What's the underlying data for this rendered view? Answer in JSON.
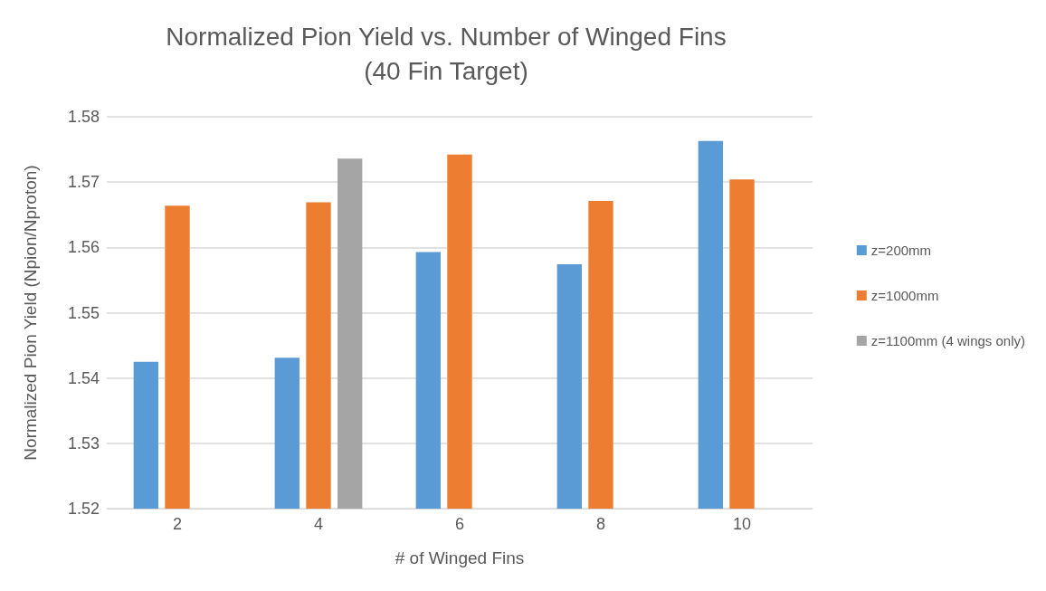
{
  "chart_data": {
    "type": "bar",
    "title": "Normalized Pion Yield vs. Number of Winged Fins\n(40 Fin Target)",
    "xlabel": "# of Winged Fins",
    "ylabel": "Normalized Pion Yield (Npion/Nproton)",
    "categories": [
      "2",
      "4",
      "6",
      "8",
      "10"
    ],
    "series": [
      {
        "name": "z=200mm",
        "color": "#5b9bd5",
        "values": [
          1.5425,
          1.5431,
          1.5593,
          1.5574,
          1.5763
        ]
      },
      {
        "name": "z=1000mm",
        "color": "#ed7d31",
        "values": [
          1.5664,
          1.5669,
          1.5742,
          1.5671,
          1.5704
        ]
      },
      {
        "name": "z=1100mm (4 wings only)",
        "color": "#a5a5a5",
        "values": [
          null,
          1.5736,
          null,
          null,
          null
        ]
      }
    ],
    "ylim": [
      1.52,
      1.58
    ],
    "yticks": [
      1.52,
      1.53,
      1.54,
      1.55,
      1.56,
      1.57,
      1.58
    ],
    "grid": "y",
    "legend": "right"
  }
}
